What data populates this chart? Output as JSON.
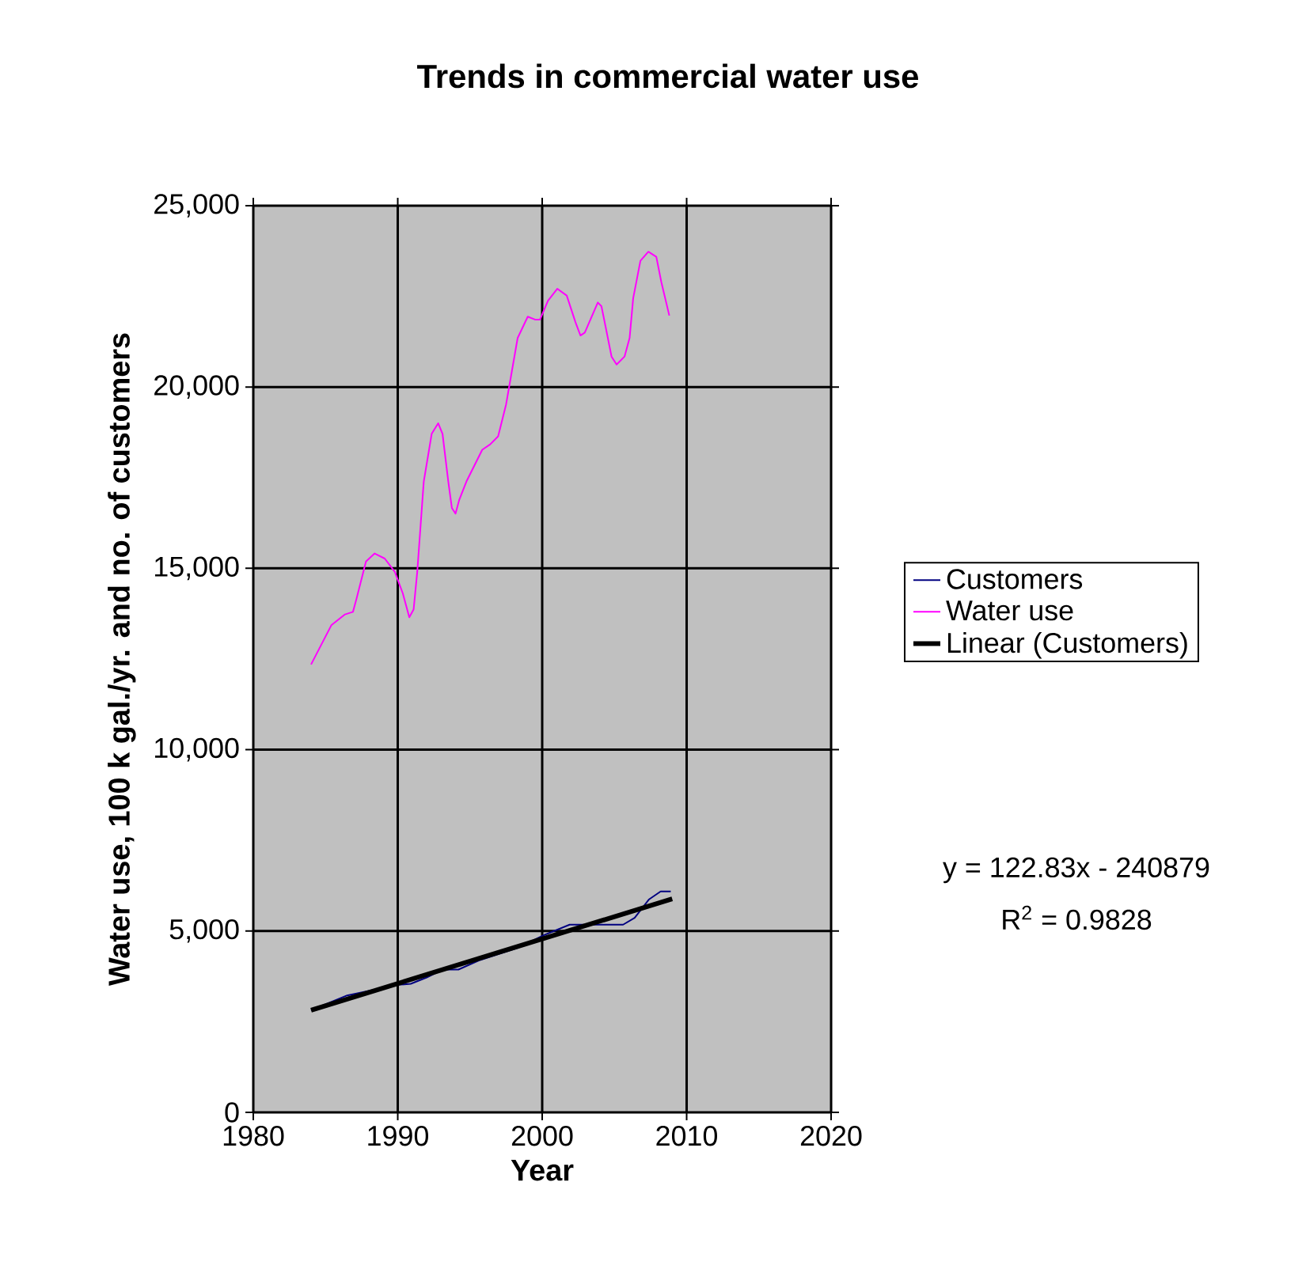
{
  "chart_data": {
    "type": "line",
    "title": "Trends in commercial water use",
    "xlabel": "Year",
    "ylabel": "Water use, 100 k gal./yr. and no. of customers",
    "xlim": [
      1980,
      2020
    ],
    "xticks": [
      1980,
      1990,
      2000,
      2010,
      2020
    ],
    "ylim": [
      0,
      25000
    ],
    "yticks": [
      {
        "value": 0,
        "label": "0"
      },
      {
        "value": 5000,
        "label": "5,000"
      },
      {
        "value": 10000,
        "label": "10,000"
      },
      {
        "value": 15000,
        "label": "15,000"
      },
      {
        "value": 20000,
        "label": "20,000"
      },
      {
        "value": 25000,
        "label": "25,000"
      }
    ],
    "grid": true,
    "legend": "right",
    "series": [
      {
        "name": "Customers",
        "color": "#000080",
        "x": [
          1984,
          1986.5,
          1990,
          1990.9,
          1992,
          1993.1,
          1994.2,
          1995.7,
          1998.3,
          2000.1,
          2001.9,
          2004.2,
          2005.6,
          2006.4,
          2007.4,
          2008.2,
          2008.9
        ],
        "values": [
          2816,
          3224,
          3515,
          3544,
          3719,
          3937,
          3937,
          4200,
          4534,
          4884,
          5175,
          5175,
          5175,
          5364,
          5874,
          6092,
          6092
        ]
      },
      {
        "name": "Water use",
        "color": "#ff00ff",
        "x": [
          1984,
          1985.4,
          1986.35,
          1986.9,
          1987.15,
          1987.8,
          1988.4,
          1989.1,
          1989.8,
          1990.35,
          1990.8,
          1991.1,
          1991.35,
          1991.8,
          1992.35,
          1992.8,
          1993.1,
          1993.5,
          1993.75,
          1994,
          1994.25,
          1994.75,
          1995.85,
          1996.4,
          1996.95,
          1997.5,
          1997.85,
          1998.3,
          1999,
          1999.5,
          1999.85,
          2000.4,
          2001.05,
          2001.7,
          2002.3,
          2002.65,
          2002.95,
          2003.5,
          2003.85,
          2004.1,
          2004.4,
          2004.8,
          2005.15,
          2005.7,
          2006.05,
          2006.3,
          2006.8,
          2007.35,
          2007.9,
          2008.25,
          2008.8
        ],
        "values": [
          12350,
          13430,
          13730,
          13800,
          14170,
          15190,
          15410,
          15270,
          14900,
          14310,
          13650,
          13870,
          14900,
          17390,
          18710,
          19000,
          18710,
          17390,
          16660,
          16510,
          16880,
          17390,
          18270,
          18420,
          18640,
          19520,
          20320,
          21350,
          21940,
          21860,
          21860,
          22380,
          22710,
          22520,
          21790,
          21420,
          21500,
          22010,
          22330,
          22230,
          21640,
          20840,
          20620,
          20840,
          21350,
          22450,
          23480,
          23730,
          23590,
          22890,
          21970
        ]
      },
      {
        "name": "Linear (Customers)",
        "color": "#000000",
        "x": [
          1984,
          2009
        ],
        "values": [
          2816,
          5886
        ]
      }
    ],
    "annotations": [
      "y = 122.83x - 240879",
      "R$^{2}$ = 0.9828"
    ]
  }
}
